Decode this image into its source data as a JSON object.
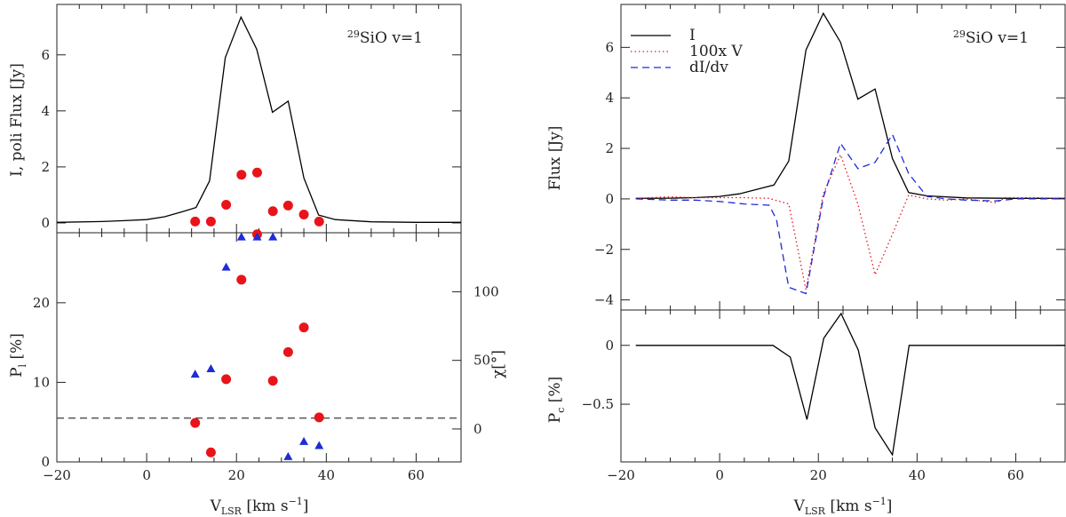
{
  "chart_data": [
    {
      "panel": "top-left",
      "type": "line+scatter",
      "annotation_iso": "29",
      "annotation_text": "SiO  v=1",
      "ylabel": "I, poli Flux [Jy]",
      "xlim": [
        -20,
        70
      ],
      "ylim": [
        -0.35,
        7.8
      ],
      "xticks": [
        -20,
        0,
        20,
        40,
        60
      ],
      "yticks": [
        0,
        2,
        4,
        6
      ],
      "series": [
        {
          "name": "I",
          "style": "line",
          "color": "#000000",
          "points": [
            [
              -20,
              0.02
            ],
            [
              -10,
              0.05
            ],
            [
              -5,
              0.08
            ],
            [
              0,
              0.12
            ],
            [
              4,
              0.22
            ],
            [
              8,
              0.4
            ],
            [
              11,
              0.55
            ],
            [
              14,
              1.5
            ],
            [
              17.5,
              5.9
            ],
            [
              21,
              7.35
            ],
            [
              24.5,
              6.2
            ],
            [
              28,
              3.95
            ],
            [
              31.5,
              4.35
            ],
            [
              35,
              1.6
            ],
            [
              38.3,
              0.28
            ],
            [
              42,
              0.12
            ],
            [
              50,
              0.04
            ],
            [
              60,
              0.02
            ],
            [
              70,
              0.02
            ]
          ]
        },
        {
          "name": "poli Flux",
          "style": "markers",
          "marker": "circle",
          "color": "#e8141a",
          "points": [
            [
              10.8,
              0.05
            ],
            [
              14.3,
              0.05
            ],
            [
              17.7,
              0.65
            ],
            [
              21.1,
              1.72
            ],
            [
              24.6,
              1.8
            ],
            [
              28.1,
              0.42
            ],
            [
              31.5,
              0.62
            ],
            [
              35.0,
              0.3
            ],
            [
              38.4,
              0.05
            ]
          ]
        }
      ]
    },
    {
      "panel": "bottom-left",
      "type": "scatter",
      "xlabel_main": "V",
      "xlabel_sub": "LSR",
      "xlabel_rest": " [km s",
      "xlabel_sup": "−1",
      "xlabel_end": "]",
      "ylabel_main": "P",
      "ylabel_sub": "l",
      "ylabel_rest": " [%]",
      "y2label": "χ[°]",
      "xlim": [
        -20,
        70
      ],
      "ylim": [
        0,
        28.8
      ],
      "xticks": [
        -20,
        0,
        20,
        40,
        60
      ],
      "yticks": [
        0,
        10,
        20
      ],
      "y2lim": [
        -24,
        143
      ],
      "y2ticks": [
        0,
        50,
        100
      ],
      "hline_y2": 8,
      "series": [
        {
          "name": "P_l",
          "style": "markers",
          "marker": "circle",
          "color": "#e8141a",
          "points": [
            [
              10.8,
              4.9
            ],
            [
              14.3,
              1.2
            ],
            [
              17.7,
              10.4
            ],
            [
              21.1,
              22.9
            ],
            [
              24.6,
              28.6
            ],
            [
              28.1,
              10.2
            ],
            [
              31.5,
              13.8
            ],
            [
              35.0,
              16.9
            ],
            [
              38.4,
              5.6
            ]
          ]
        },
        {
          "name": "chi",
          "style": "markers",
          "marker": "triangle",
          "color": "#1f2bd6",
          "points": [
            [
              10.8,
              40
            ],
            [
              14.3,
              44
            ],
            [
              17.7,
              118
            ],
            [
              21.1,
              140
            ],
            [
              24.6,
              140
            ],
            [
              28.1,
              140
            ],
            [
              31.5,
              -20
            ],
            [
              35.0,
              -9
            ],
            [
              38.4,
              -12
            ]
          ]
        }
      ]
    },
    {
      "panel": "top-right",
      "type": "line",
      "annotation_iso": "29",
      "annotation_text": "SiO  v=1",
      "ylabel": "Flux [Jy]",
      "xlim": [
        -20,
        70
      ],
      "ylim": [
        -4.4,
        7.7
      ],
      "xticks": [
        -20,
        0,
        20,
        40,
        60
      ],
      "yticks": [
        -4,
        -2,
        0,
        2,
        4,
        6
      ],
      "legend_position": "top-left",
      "series": [
        {
          "name": "I",
          "style": "solid",
          "color": "#000000",
          "points": [
            [
              -17,
              0.02
            ],
            [
              -10,
              0.03
            ],
            [
              -5,
              0.05
            ],
            [
              0,
              0.1
            ],
            [
              4,
              0.2
            ],
            [
              8,
              0.4
            ],
            [
              11,
              0.55
            ],
            [
              14,
              1.5
            ],
            [
              17.5,
              5.9
            ],
            [
              21,
              7.35
            ],
            [
              24.5,
              6.2
            ],
            [
              28,
              3.95
            ],
            [
              31.5,
              4.35
            ],
            [
              35,
              1.6
            ],
            [
              38.3,
              0.25
            ],
            [
              42,
              0.12
            ],
            [
              50,
              0.04
            ],
            [
              60,
              0.02
            ],
            [
              70,
              0.02
            ]
          ]
        },
        {
          "name": "100x V",
          "style": "dotted",
          "color": "#e8141a",
          "points": [
            [
              -17,
              0.0
            ],
            [
              -14,
              0.05
            ],
            [
              -10,
              0.08
            ],
            [
              -5,
              0.05
            ],
            [
              0,
              0.05
            ],
            [
              5,
              0.05
            ],
            [
              10,
              0.02
            ],
            [
              14,
              -0.2
            ],
            [
              17.5,
              -3.6
            ],
            [
              21,
              0.2
            ],
            [
              24.5,
              1.75
            ],
            [
              28,
              -0.2
            ],
            [
              31.5,
              -3.0
            ],
            [
              35,
              -1.4
            ],
            [
              38.3,
              0.15
            ],
            [
              42,
              0.0
            ],
            [
              46,
              -0.05
            ],
            [
              50,
              0.0
            ],
            [
              53,
              -0.08
            ],
            [
              56,
              -0.15
            ],
            [
              58,
              0.05
            ],
            [
              64,
              0.05
            ],
            [
              70,
              0.0
            ]
          ]
        },
        {
          "name": "dI/dv",
          "style": "dashed",
          "color": "#1f2bd6",
          "points": [
            [
              -17,
              0.0
            ],
            [
              -10,
              -0.05
            ],
            [
              -5,
              -0.05
            ],
            [
              0,
              -0.1
            ],
            [
              5,
              -0.2
            ],
            [
              10,
              -0.25
            ],
            [
              11.5,
              -0.8
            ],
            [
              14,
              -3.5
            ],
            [
              17.5,
              -3.75
            ],
            [
              21,
              0.05
            ],
            [
              24.5,
              2.2
            ],
            [
              28,
              1.2
            ],
            [
              31.5,
              1.45
            ],
            [
              35,
              2.55
            ],
            [
              38.3,
              1.0
            ],
            [
              42,
              0.1
            ],
            [
              46,
              0.0
            ],
            [
              50,
              -0.05
            ],
            [
              56,
              -0.08
            ],
            [
              60,
              0.0
            ],
            [
              70,
              0.0
            ]
          ]
        }
      ]
    },
    {
      "panel": "bottom-right",
      "type": "line",
      "xlabel_main": "V",
      "xlabel_sub": "LSR",
      "xlabel_rest": " [km s",
      "xlabel_sup": "−1",
      "xlabel_end": "]",
      "ylabel_main": "P",
      "ylabel_sub": "c",
      "ylabel_rest": " [%]",
      "xlim": [
        -20,
        70
      ],
      "ylim": [
        -0.99,
        0.3
      ],
      "xticks": [
        -20,
        0,
        20,
        40,
        60
      ],
      "yticks": [
        -0.5,
        0
      ],
      "series": [
        {
          "name": "P_c",
          "style": "solid",
          "color": "#000000",
          "points": [
            [
              -17,
              0.0
            ],
            [
              10.8,
              0.0
            ],
            [
              14.3,
              -0.1
            ],
            [
              17.7,
              -0.63
            ],
            [
              21.1,
              0.06
            ],
            [
              24.6,
              0.27
            ],
            [
              28.1,
              -0.04
            ],
            [
              31.5,
              -0.7
            ],
            [
              35.0,
              -0.93
            ],
            [
              38.4,
              0.0
            ],
            [
              70,
              0.0
            ]
          ]
        }
      ]
    }
  ]
}
